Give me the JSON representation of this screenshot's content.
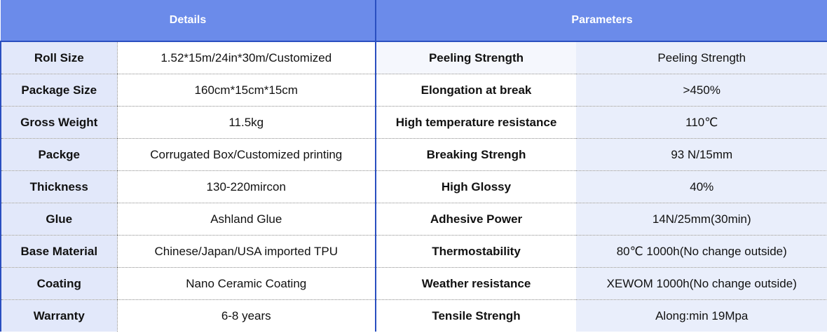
{
  "header": {
    "details": "Details",
    "parameters": "Parameters"
  },
  "rows": [
    {
      "detail_label": "Roll Size",
      "detail_value": "1.52*15m/24in*30m/Customized",
      "param_label": "Peeling Strength",
      "param_value": "Peeling Strength"
    },
    {
      "detail_label": "Package Size",
      "detail_value": "160cm*15cm*15cm",
      "param_label": "Elongation at break",
      "param_value": ">450%"
    },
    {
      "detail_label": "Gross Weight",
      "detail_value": "11.5kg",
      "param_label": "High temperature resistance",
      "param_value": "110℃"
    },
    {
      "detail_label": "Packge",
      "detail_value": "Corrugated Box/Customized printing",
      "param_label": "Breaking Strengh",
      "param_value": "93 N/15mm"
    },
    {
      "detail_label": "Thickness",
      "detail_value": "130-220mircon",
      "param_label": "High Glossy",
      "param_value": "40%"
    },
    {
      "detail_label": "Glue",
      "detail_value": "Ashland Glue",
      "param_label": "Adhesive Power",
      "param_value": "14N/25mm(30min)"
    },
    {
      "detail_label": "Base Material",
      "detail_value": "Chinese/Japan/USA imported TPU",
      "param_label": "Thermostability",
      "param_value": "80℃ 1000h(No change outside)"
    },
    {
      "detail_label": "Coating",
      "detail_value": "Nano Ceramic Coating",
      "param_label": "Weather resistance",
      "param_value": "XEWOM 1000h(No change outside)"
    },
    {
      "detail_label": "Warranty",
      "detail_value": "6-8 years",
      "param_label": "Tensile Strengh",
      "param_value": "Along:min 19Mpa"
    }
  ]
}
